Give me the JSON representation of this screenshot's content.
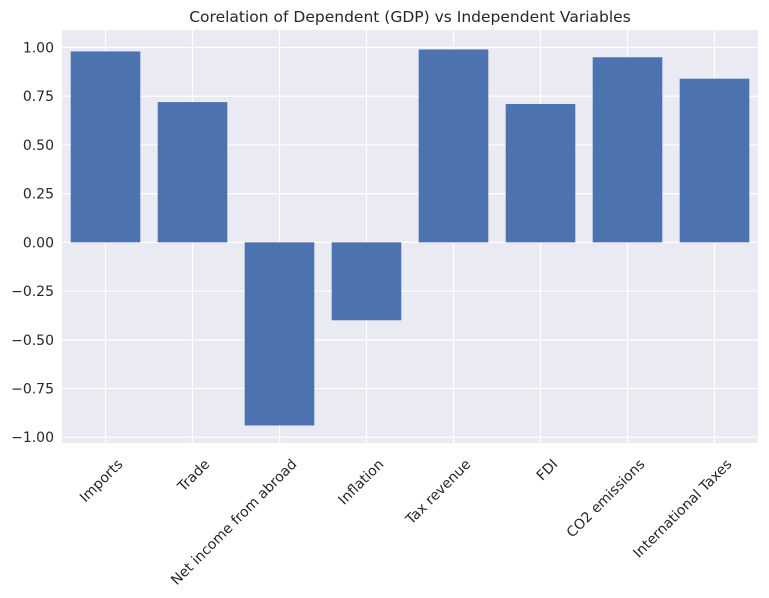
{
  "chart_data": {
    "type": "bar",
    "title": "Corelation of Dependent (GDP) vs Independent Variables",
    "xlabel": "",
    "ylabel": "",
    "categories": [
      "Imports",
      "Trade",
      "Net income from abroad",
      "Inflation",
      "Tax revenue",
      "FDI",
      "CO2 emissions",
      "International Taxes"
    ],
    "values": [
      0.98,
      0.72,
      -0.94,
      -0.4,
      0.99,
      0.71,
      0.95,
      0.84
    ],
    "ylim": [
      -1.03,
      1.09
    ],
    "yticks": [
      1.0,
      0.75,
      0.5,
      0.25,
      0.0,
      -0.25,
      -0.5,
      -0.75,
      -1.0
    ],
    "ytick_labels": [
      "1.00",
      "0.75",
      "0.50",
      "0.25",
      "0.00",
      "−0.25",
      "−0.50",
      "−0.75",
      "−1.00"
    ],
    "grid": true,
    "legend": "none",
    "colors": {
      "bar": "#4c72b0",
      "background": "#eaeaf2",
      "grid": "#ffffff",
      "text": "#262626"
    }
  }
}
